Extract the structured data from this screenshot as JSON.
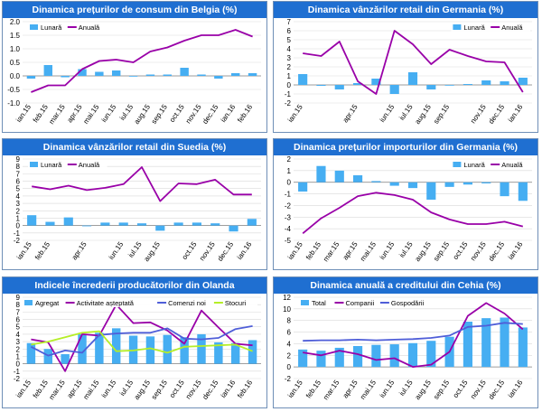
{
  "colors": {
    "title_bg": "#1f6fd1",
    "bar": "#46aef2",
    "line1": "#9900a8",
    "line2": "#4f5ed8",
    "line3": "#b5ee27"
  },
  "chart_data": [
    {
      "type": "bar",
      "title": "Dinamica prețurilor de consum din Belgia (%)",
      "categories": [
        "ian.15",
        "feb.15",
        "mar.15",
        "apr.15",
        "mai.15",
        "iun.15",
        "iul.15",
        "aug.15",
        "sep.15",
        "oct.15",
        "nov.15",
        "dec.15",
        "ian.16",
        "feb.16"
      ],
      "ylim": [
        -1,
        2
      ],
      "ystep": 0.5,
      "decimals": 1,
      "tick_labels": [
        "ian.15",
        "feb.15",
        "mar.15",
        "apr.15",
        "mai.15",
        "iun.15",
        "iul.15",
        "aug.15",
        "sep.15",
        "oct.15",
        "nov.15",
        "dec.15",
        "ian.16",
        "feb.16"
      ],
      "legend": "top-left",
      "series": [
        {
          "name": "Lunară",
          "kind": "bar",
          "values": [
            -0.1,
            0.4,
            -0.05,
            0.25,
            0.15,
            0.2,
            0.0,
            0.05,
            0.05,
            0.3,
            0.05,
            -0.1,
            0.1,
            0.1
          ]
        },
        {
          "name": "Anuală",
          "kind": "line",
          "values": [
            -0.6,
            -0.35,
            -0.35,
            0.25,
            0.55,
            0.6,
            0.5,
            0.9,
            1.05,
            1.3,
            1.5,
            1.5,
            1.7,
            1.45
          ]
        }
      ]
    },
    {
      "type": "bar",
      "title": "Dinamica vânzărilor retail din Germania (%)",
      "categories": [
        "ian.15",
        "feb.15",
        "mar.15",
        "apr.15",
        "mai.15",
        "iun.15",
        "iul.15",
        "aug.15",
        "sep.15",
        "oct.15",
        "nov.15",
        "dec.15",
        "ian.16"
      ],
      "ylim": [
        -2,
        7
      ],
      "ystep": 1,
      "decimals": 0,
      "tick_labels": [
        "ian.15",
        "apr.15",
        "iun.15",
        "iul.15",
        "aug.15",
        "sep.15",
        "nov.15",
        "dec.15",
        "ian.16"
      ],
      "tick_positions": [
        0,
        3,
        5,
        6,
        7,
        8,
        10,
        11,
        12
      ],
      "legend": "top-right",
      "series": [
        {
          "name": "Lunară",
          "kind": "bar",
          "values": [
            1.2,
            -0.1,
            -0.5,
            0.2,
            0.7,
            -1.0,
            1.4,
            -0.5,
            0.0,
            0.1,
            0.5,
            0.4,
            0.8
          ]
        },
        {
          "name": "Anuală",
          "kind": "line",
          "values": [
            3.5,
            3.2,
            4.8,
            0.4,
            -1.0,
            6.0,
            4.5,
            2.3,
            3.9,
            3.2,
            2.6,
            2.5,
            -0.8
          ]
        }
      ]
    },
    {
      "type": "bar",
      "title": "Dinamica vânzărilor retail din Suedia (%)",
      "categories": [
        "ian.15",
        "feb.15",
        "mar.15",
        "apr.15",
        "mai.15",
        "iun.15",
        "iul.15",
        "aug.15",
        "sep.15",
        "oct.15",
        "nov.15",
        "dec.15",
        "ian.16"
      ],
      "ylim": [
        -2,
        9
      ],
      "ystep": 1,
      "decimals": 0,
      "tick_labels": [
        "ian.15",
        "feb.15",
        "apr.15",
        "iun.15",
        "iul.15",
        "aug.15",
        "oct.15",
        "nov.15",
        "dec.15",
        "ian.16"
      ],
      "tick_positions": [
        0,
        1,
        3,
        5,
        6,
        7,
        9,
        10,
        11,
        12
      ],
      "legend": "top-left",
      "series": [
        {
          "name": "Lunară",
          "kind": "bar",
          "values": [
            1.4,
            0.5,
            1.1,
            -0.1,
            0.4,
            0.4,
            0.3,
            -0.7,
            0.4,
            0.4,
            0.3,
            -0.8,
            0.9
          ]
        },
        {
          "name": "Anuală",
          "kind": "line",
          "values": [
            5.3,
            4.9,
            5.4,
            4.8,
            5.1,
            5.6,
            7.9,
            3.3,
            5.7,
            5.6,
            6.2,
            4.2,
            4.2
          ]
        }
      ]
    },
    {
      "type": "bar",
      "title": "Dinamica prețurilor importurilor din Germania (%)",
      "categories": [
        "ian.15",
        "feb.15",
        "mar.15",
        "apr.15",
        "mai.15",
        "iun.15",
        "iul.15",
        "aug.15",
        "sep.15",
        "oct.15",
        "nov.15",
        "dec.15",
        "ian.16"
      ],
      "ylim": [
        -5,
        2
      ],
      "ystep": 1,
      "decimals": 0,
      "tick_labels": [
        "ian.15",
        "feb.15",
        "mar.15",
        "apr.15",
        "mai.15",
        "iun.15",
        "iul.15",
        "aug.15",
        "sep.15",
        "oct.15",
        "nov.15",
        "dec.15",
        "ian.16"
      ],
      "legend": "top-right",
      "series": [
        {
          "name": "Lunară",
          "kind": "bar",
          "values": [
            -0.8,
            1.4,
            1.0,
            0.6,
            0.1,
            -0.3,
            -0.5,
            -1.5,
            -0.4,
            -0.2,
            -0.1,
            -1.2,
            -1.6
          ]
        },
        {
          "name": "Anuală",
          "kind": "line",
          "values": [
            -4.4,
            -3.1,
            -2.2,
            -1.2,
            -0.9,
            -1.1,
            -1.5,
            -2.6,
            -3.2,
            -3.6,
            -3.6,
            -3.4,
            -3.8
          ]
        }
      ]
    },
    {
      "type": "bar",
      "title": "Indicele încrederii producătorilor din Olanda",
      "categories": [
        "ian.15",
        "feb.15",
        "mar.15",
        "apr.15",
        "mai.15",
        "iun.15",
        "iul.15",
        "aug.15",
        "sep.15",
        "oct.15",
        "nov.15",
        "dec.15",
        "ian.16",
        "feb.16"
      ],
      "ylim": [
        -2,
        9
      ],
      "ystep": 1,
      "decimals": 0,
      "tick_labels": [
        "ian.15",
        "feb.15",
        "mar.15",
        "apr.15",
        "mai.15",
        "iun.15",
        "iul.15",
        "aug.15",
        "sep.15",
        "oct.15",
        "nov.15",
        "dec.15",
        "ian.16",
        "feb.16"
      ],
      "legend": "top-wide",
      "series": [
        {
          "name": "Agregat",
          "kind": "bar",
          "values": [
            2.8,
            2.0,
            1.3,
            4.0,
            4.2,
            4.8,
            3.8,
            3.7,
            3.9,
            3.6,
            4.0,
            2.9,
            2.8,
            3.2
          ]
        },
        {
          "name": "Activitate așteptată",
          "kind": "line",
          "values": [
            3.3,
            2.9,
            -1.0,
            4.0,
            3.8,
            8.0,
            5.5,
            5.6,
            4.5,
            2.7,
            7.2,
            4.9,
            2.7,
            2.5
          ]
        },
        {
          "name": "Comenzi noi",
          "kind": "line",
          "values": [
            2.3,
            1.1,
            1.8,
            1.5,
            3.9,
            4.1,
            4.2,
            4.2,
            4.8,
            3.4,
            3.3,
            3.5,
            4.7,
            5.1
          ]
        },
        {
          "name": "Stocuri",
          "kind": "line",
          "values": [
            2.6,
            3.0,
            3.6,
            4.2,
            4.4,
            1.7,
            1.8,
            2.1,
            1.5,
            2.3,
            2.4,
            2.5,
            2.6,
            1.7
          ]
        }
      ]
    },
    {
      "type": "bar",
      "title": "Dinamica anuală a creditului din Cehia (%)",
      "categories": [
        "ian.15",
        "feb.15",
        "mar.15",
        "apr.15",
        "mai.15",
        "iun.15",
        "iul.15",
        "aug.15",
        "sep.15",
        "oct.15",
        "nov.15",
        "dec.15",
        "ian.16"
      ],
      "ylim": [
        -2,
        12
      ],
      "ystep": 2,
      "decimals": 0,
      "tick_labels": [
        "ian.15",
        "feb.15",
        "mar.15",
        "apr.15",
        "mai.15",
        "iun.15",
        "iul.15",
        "aug.15",
        "sep.15",
        "oct.15",
        "nov.15",
        "dec.15",
        "ian.16"
      ],
      "legend": "top-left",
      "series": [
        {
          "name": "Total",
          "kind": "bar",
          "values": [
            3.0,
            2.8,
            3.3,
            3.6,
            3.8,
            3.9,
            4.1,
            4.5,
            5.2,
            7.8,
            8.4,
            8.5,
            6.8
          ]
        },
        {
          "name": "Companii",
          "kind": "line",
          "values": [
            2.5,
            2.0,
            2.8,
            2.2,
            1.2,
            1.5,
            0.0,
            0.4,
            2.6,
            8.8,
            11.0,
            9.2,
            6.5
          ]
        },
        {
          "name": "Gospodării",
          "kind": "line",
          "values": [
            4.5,
            4.6,
            4.6,
            4.7,
            4.6,
            4.7,
            4.8,
            5.0,
            5.4,
            6.9,
            7.1,
            7.6,
            7.4
          ]
        }
      ]
    }
  ]
}
